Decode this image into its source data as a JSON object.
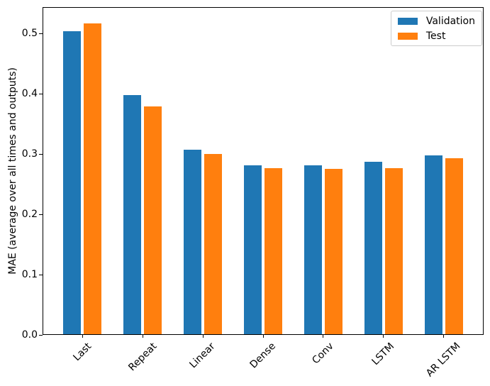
{
  "chart_data": {
    "type": "bar",
    "title": "",
    "categories": [
      "Last",
      "Repeat",
      "Linear",
      "Dense",
      "Conv",
      "LSTM",
      "AR LSTM"
    ],
    "series": [
      {
        "name": "Validation",
        "color": "#1f77b4",
        "values": [
          0.504,
          0.398,
          0.307,
          0.282,
          0.282,
          0.287,
          0.298
        ]
      },
      {
        "name": "Test",
        "color": "#ff7f0e",
        "values": [
          0.517,
          0.379,
          0.3,
          0.277,
          0.275,
          0.277,
          0.293
        ]
      }
    ],
    "xlabel": "",
    "ylabel": "MAE (average over all times and outputs)",
    "ytick_labels": [
      "0.0",
      "0.1",
      "0.2",
      "0.3",
      "0.4",
      "0.5"
    ],
    "yticks": [
      0.0,
      0.1,
      0.2,
      0.3,
      0.4,
      0.5
    ],
    "ylim": [
      0,
      0.544
    ],
    "xlim": [
      -0.66,
      6.66
    ],
    "bar_width": 0.3,
    "bar_offsets": [
      -0.17,
      0.17
    ],
    "xtick_rotation_deg": 45,
    "grid": false,
    "legend": {
      "position": "upper right",
      "frame": true
    },
    "colors": {
      "background": "#ffffff",
      "spines": "#000000",
      "text": "#000000"
    }
  }
}
